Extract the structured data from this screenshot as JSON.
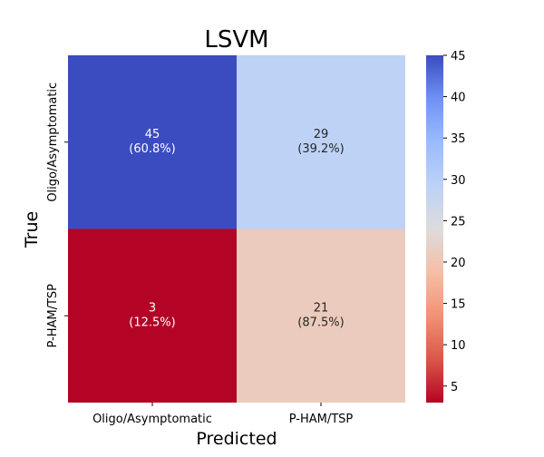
{
  "chart_data": {
    "type": "heatmap",
    "title": "LSVM",
    "xlabel": "Predicted",
    "ylabel": "True",
    "x_categories": [
      "Oligo/Asymptomatic",
      "P-HAM/TSP"
    ],
    "y_categories": [
      "Oligo/Asymptomatic",
      "P-HAM/TSP"
    ],
    "cells": [
      [
        {
          "value": 45,
          "percent": "60.8%"
        },
        {
          "value": 29,
          "percent": "39.2%"
        }
      ],
      [
        {
          "value": 3,
          "percent": "12.5%"
        },
        {
          "value": 21,
          "percent": "87.5%"
        }
      ]
    ],
    "colormap": "coolwarm",
    "colorbar": {
      "min": 3,
      "max": 45,
      "ticks": [
        5,
        10,
        15,
        20,
        25,
        30,
        35,
        40,
        45
      ]
    },
    "colors": {
      "cell_45": "#3b4cc0",
      "cell_29": "#bcd2f7",
      "cell_3": "#b40426",
      "cell_21": "#edd1c2"
    }
  }
}
